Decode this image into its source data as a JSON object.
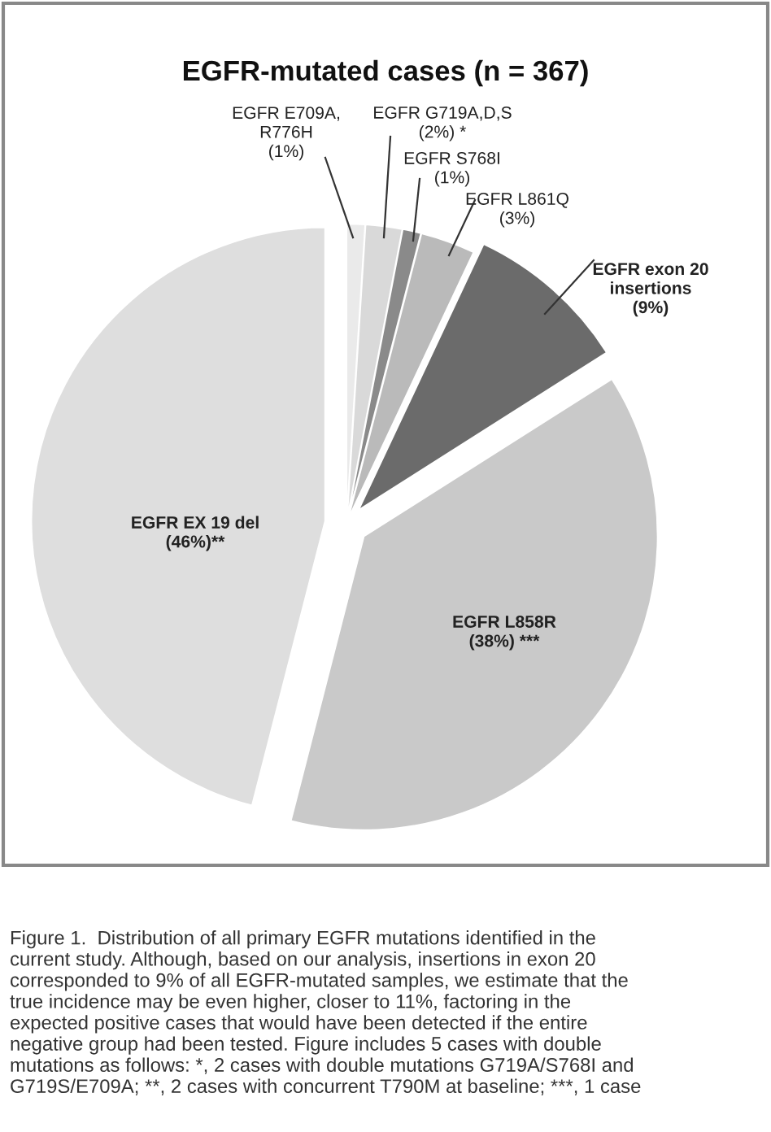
{
  "chart_data": {
    "type": "pie",
    "title": "EGFR-mutated cases (n = 367)",
    "categories": [
      "EGFR E709A,\nR776H\n(1%)",
      "EGFR G719A,D,S\n(2%) *",
      "EGFR S768I\n(1%)",
      "EGFR L861Q\n(3%)",
      "EGFR exon 20\ninsertions\n(9%)",
      "EGFR L858R\n(38%) ***",
      "EGFR EX 19 del\n(46%)**"
    ],
    "values": [
      1,
      2,
      1,
      3,
      9,
      38,
      46
    ],
    "colors": [
      "#eaeaea",
      "#d9d9d9",
      "#8a8a8a",
      "#bababa",
      "#6b6b6b",
      "#c9c9c9",
      "#dedede"
    ],
    "annotations": [
      "Figure 1.  Distribution of all primary EGFR mutations identified in the\ncurrent study. Although, based on our analysis, insertions in exon 20\ncorresponded to 9% of all EGFR-mutated samples, we estimate that the\ntrue incidence may be even higher, closer to 11%, factoring in the\nexpected positive cases that would have been detected if the entire\nnegative group had been tested. Figure includes 5 cases with double\nmutations as follows: *, 2 cases with double mutations G719A/S768I and\nG719S/E709A; **, 2 cases with concurrent T790M at baseline; ***, 1 case"
    ]
  }
}
